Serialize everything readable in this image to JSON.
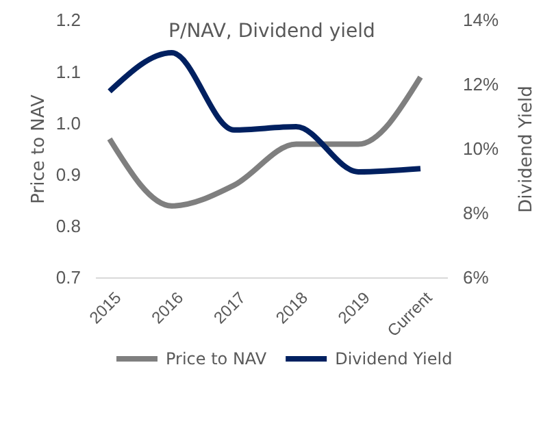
{
  "chart_data": {
    "type": "line",
    "title": "P/NAV, Dividend yield",
    "ylabel": "Price to NAV",
    "y2label": "Dividend Yield",
    "categories": [
      "2015",
      "2016",
      "2017",
      "2018",
      "2019",
      "Current"
    ],
    "series": [
      {
        "name": "Price to NAV",
        "color": "#7f7f7f",
        "values": [
          0.97,
          0.84,
          0.88,
          0.96,
          0.96,
          1.09
        ]
      },
      {
        "name": "Dividend Yield",
        "color": "#002060",
        "axis": "y2",
        "values": [
          11.8,
          13.0,
          10.6,
          10.7,
          9.3,
          9.4
        ]
      }
    ],
    "ylim": [
      0.7,
      1.2
    ],
    "yticks": [
      {
        "value": 0.7,
        "label": "0.7"
      },
      {
        "value": 0.8,
        "label": "0.8"
      },
      {
        "value": 0.9,
        "label": "0.9"
      },
      {
        "value": 1.0,
        "label": "1.0"
      },
      {
        "value": 1.1,
        "label": "1.1"
      },
      {
        "value": 1.2,
        "label": "1.2"
      }
    ],
    "y2lim": [
      6,
      14
    ],
    "y2ticks": [
      {
        "value": 6,
        "label": "6%"
      },
      {
        "value": 8,
        "label": "8%"
      },
      {
        "value": 10,
        "label": "10%"
      },
      {
        "value": 12,
        "label": "12%"
      },
      {
        "value": 14,
        "label": "14%"
      }
    ],
    "grid": false,
    "legend": "bottom",
    "marker": "none",
    "line_style": "solid"
  }
}
